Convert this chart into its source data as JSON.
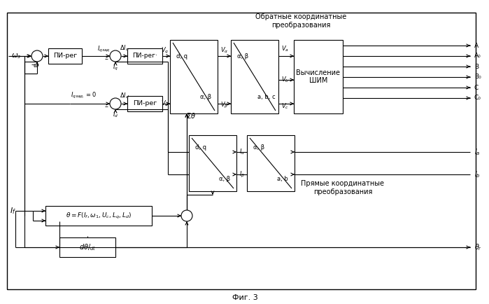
{
  "title": "Фиг. 3",
  "top_label": "Обратные координатные\nпреобразования",
  "bottom_label": "Прямые координатные\nпреобразования",
  "bg": "#ffffff",
  "lc": "#000000",
  "fig_width": 6.99,
  "fig_height": 4.34,
  "dpi": 100
}
